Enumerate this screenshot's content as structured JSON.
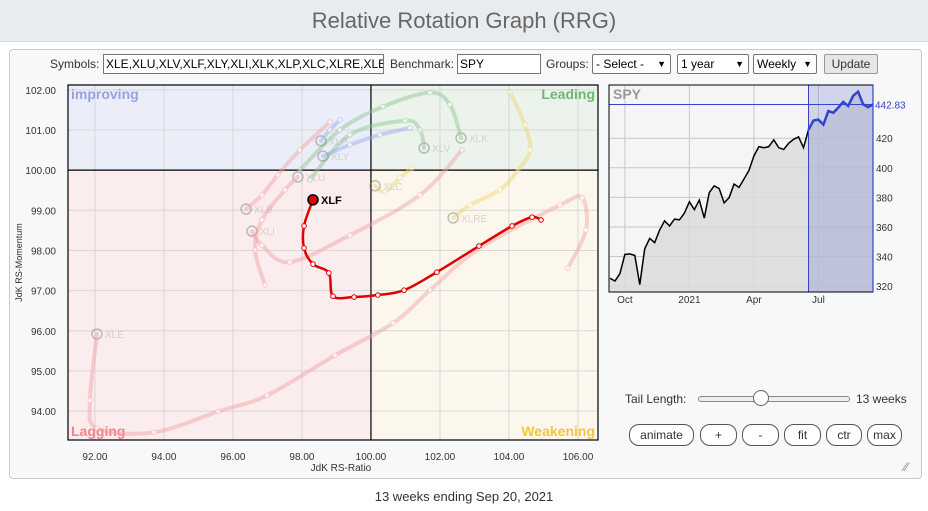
{
  "title": "Relative Rotation Graph (RRG)",
  "controls": {
    "symbols_label": "Symbols:",
    "symbols_value": "XLE,XLU,XLV,XLF,XLY,XLI,XLK,XLP,XLC,XLRE,XLB",
    "benchmark_label": "Benchmark:",
    "benchmark_value": "SPY",
    "groups_label": "Groups:",
    "groups_value": "- Select -",
    "period_value": "1 year",
    "frequency_value": "Weekly",
    "update_label": "Update"
  },
  "rrg": {
    "xlabel": "JdK RS-Ratio",
    "ylabel": "JdK RS-Momentum",
    "xlim": [
      91.22,
      106.58
    ],
    "ylim": [
      93.28,
      102.12
    ],
    "center": [
      100,
      100
    ],
    "x_ticks": [
      "92.00",
      "94.00",
      "96.00",
      "98.00",
      "100.00",
      "102.00",
      "104.00",
      "106.00"
    ],
    "y_ticks": [
      "94.00",
      "95.00",
      "96.00",
      "97.00",
      "98.00",
      "99.00",
      "100.00",
      "101.00",
      "102.00"
    ],
    "quadrants": {
      "improving": {
        "label": "improving",
        "bg": "#ebeef8",
        "color": "#98a2e0"
      },
      "leading": {
        "label": "Leading",
        "bg": "#ebf3ec",
        "color": "#6cb86c"
      },
      "lagging": {
        "label": "Lagging",
        "bg": "#fbeced",
        "color": "#f0868a"
      },
      "weakening": {
        "label": "Weakening",
        "bg": "#fbf7ec",
        "color": "#f0c93a"
      }
    },
    "highlight_color": "#e00000",
    "series": [
      {
        "symbol": "XLF",
        "highlighted": true,
        "points": [
          [
            104.93,
            98.76
          ],
          [
            104.67,
            98.83
          ],
          [
            104.09,
            98.61
          ],
          [
            103.13,
            98.11
          ],
          [
            101.91,
            97.46
          ],
          [
            100.96,
            97.01
          ],
          [
            100.2,
            96.89
          ],
          [
            99.51,
            96.84
          ],
          [
            98.9,
            96.86
          ],
          [
            98.78,
            97.44
          ],
          [
            98.32,
            97.66
          ],
          [
            98.06,
            98.06
          ],
          [
            98.06,
            98.61
          ],
          [
            98.32,
            99.26
          ]
        ]
      },
      {
        "symbol": "XLE",
        "highlighted": false,
        "points": [
          [
            105.71,
            97.56
          ],
          [
            106.23,
            98.51
          ],
          [
            106.12,
            99.31
          ],
          [
            105.48,
            99.13
          ],
          [
            103.16,
            98.06
          ],
          [
            101.71,
            97.01
          ],
          [
            100.64,
            96.19
          ],
          [
            98.96,
            95.39
          ],
          [
            96.99,
            94.39
          ],
          [
            95.57,
            93.99
          ],
          [
            93.71,
            93.47
          ],
          [
            92.06,
            93.57
          ],
          [
            91.86,
            94.27
          ],
          [
            92.06,
            95.92
          ]
        ]
      },
      {
        "symbol": "XLI",
        "highlighted": false,
        "points": [
          [
            102.64,
            100.5
          ],
          [
            101.42,
            99.38
          ],
          [
            99.39,
            98.38
          ],
          [
            97.65,
            97.71
          ],
          [
            96.84,
            98.13
          ],
          [
            96.55,
            98.48
          ]
        ]
      },
      {
        "symbol": "XLU",
        "highlighted": false,
        "points": [
          [
            96.93,
            97.14
          ],
          [
            96.64,
            98.01
          ],
          [
            96.84,
            98.76
          ],
          [
            97.51,
            99.51
          ],
          [
            97.88,
            99.83
          ]
        ]
      },
      {
        "symbol": "XLB",
        "highlighted": false,
        "points": [
          [
            98.81,
            101.2
          ],
          [
            97.94,
            100.5
          ],
          [
            97.3,
            99.88
          ],
          [
            96.84,
            99.38
          ],
          [
            96.38,
            99.03
          ]
        ]
      },
      {
        "symbol": "XLV",
        "highlighted": false,
        "points": [
          [
            98.23,
            99.76
          ],
          [
            99.39,
            100.88
          ],
          [
            100.99,
            101.23
          ],
          [
            101.42,
            101.0
          ],
          [
            101.54,
            100.55
          ]
        ]
      },
      {
        "symbol": "XLK",
        "highlighted": false,
        "points": [
          [
            97.94,
            100.0
          ],
          [
            99.1,
            101.0
          ],
          [
            100.35,
            101.58
          ],
          [
            101.71,
            101.93
          ],
          [
            102.29,
            101.63
          ],
          [
            102.61,
            100.8
          ]
        ]
      },
      {
        "symbol": "XLY",
        "highlighted": false,
        "points": [
          [
            101.13,
            101.05
          ],
          [
            100.26,
            100.88
          ],
          [
            99.39,
            100.63
          ],
          [
            98.61,
            100.35
          ]
        ]
      },
      {
        "symbol": "XLP",
        "highlighted": false,
        "points": [
          [
            99.1,
            101.25
          ],
          [
            98.81,
            101.0
          ],
          [
            98.55,
            100.73
          ]
        ]
      },
      {
        "symbol": "XLC",
        "highlighted": false,
        "points": [
          [
            101.19,
            100.05
          ],
          [
            100.84,
            99.81
          ],
          [
            100.41,
            99.46
          ],
          [
            100.12,
            99.61
          ]
        ]
      },
      {
        "symbol": "XLRE",
        "highlighted": false,
        "points": [
          [
            104.03,
            101.95
          ],
          [
            104.46,
            101.13
          ],
          [
            104.61,
            100.5
          ],
          [
            104.26,
            100.0
          ],
          [
            103.74,
            99.51
          ],
          [
            102.87,
            99.13
          ],
          [
            102.38,
            98.81
          ]
        ]
      }
    ]
  },
  "benchmark_chart": {
    "symbol": "SPY",
    "last_value": "442.83",
    "ylim": [
      316,
      456
    ],
    "y_ticks": [
      "320",
      "340",
      "360",
      "380",
      "400",
      "420"
    ],
    "x_ticks": [
      {
        "label": "Oct",
        "index": 3
      },
      {
        "label": "2021",
        "index": 16
      },
      {
        "label": "Apr",
        "index": 29
      },
      {
        "label": "Jul",
        "index": 42
      }
    ],
    "highlight_start_index": 40,
    "line_color": "#000000",
    "highlight_color": "#3344cc",
    "values": [
      325.3,
      323.4,
      328.5,
      341.4,
      341.8,
      340.7,
      321,
      345.3,
      352.2,
      349.4,
      357.9,
      364.1,
      360.7,
      365.3,
      364.8,
      369.4,
      377,
      371.7,
      378.2,
      366,
      383.2,
      387.8,
      386,
      376.3,
      379.8,
      389,
      386.7,
      392.4,
      398.2,
      408,
      414.3,
      413.6,
      414.3,
      418.9,
      413.6,
      412.4,
      416.6,
      419.3,
      420.9,
      413.6,
      425.7,
      432,
      432.6,
      429.2,
      438.4,
      437.2,
      440.7,
      444.6,
      441.8,
      448.7,
      451.5,
      443,
      441.1,
      442.83
    ]
  },
  "tail": {
    "label": "Tail Length:",
    "value": "13 weeks",
    "fraction": 0.41
  },
  "buttons": {
    "animate": "animate",
    "zoom_in": "+",
    "zoom_out": "-",
    "fit": "fit",
    "ctr": "ctr",
    "max": "max"
  },
  "footer": "13 weeks ending Sep 20, 2021"
}
